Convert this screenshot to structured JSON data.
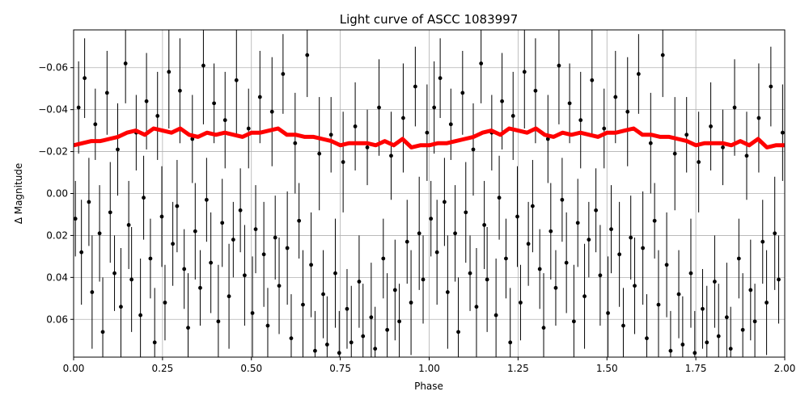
{
  "chart_data": {
    "type": "scatter",
    "title": "Light curve of ASCC 1083997",
    "xlabel": "Phase",
    "ylabel": "Δ Magnitude",
    "xlim": [
      0.0,
      2.0
    ],
    "ylim": [
      0.078,
      -0.078
    ],
    "y_inverted": true,
    "grid": true,
    "x_ticks": [
      "0.00",
      "0.25",
      "0.50",
      "0.75",
      "1.00",
      "1.25",
      "1.50",
      "1.75",
      "2.00"
    ],
    "x_tick_values": [
      0.0,
      0.25,
      0.5,
      0.75,
      1.0,
      1.25,
      1.5,
      1.75,
      2.0
    ],
    "y_ticks": [
      "−0.06",
      "−0.04",
      "−0.02",
      "0.00",
      "0.02",
      "0.04",
      "0.06"
    ],
    "y_tick_values": [
      -0.06,
      -0.04,
      -0.02,
      0.0,
      0.02,
      0.04,
      0.06
    ],
    "colors": {
      "points": "#000000",
      "binned": "#ff0000",
      "grid": "#b0b0b0"
    },
    "series": [
      {
        "kind": "points-with-errorbars",
        "period_repeat": true,
        "phase": [
          0.005,
          0.014,
          0.022,
          0.031,
          0.043,
          0.052,
          0.061,
          0.073,
          0.082,
          0.094,
          0.103,
          0.115,
          0.124,
          0.133,
          0.146,
          0.155,
          0.163,
          0.176,
          0.188,
          0.197,
          0.205,
          0.216,
          0.228,
          0.236,
          0.248,
          0.257,
          0.268,
          0.279,
          0.291,
          0.299,
          0.311,
          0.322,
          0.334,
          0.342,
          0.356,
          0.365,
          0.374,
          0.386,
          0.395,
          0.407,
          0.418,
          0.426,
          0.437,
          0.449,
          0.458,
          0.469,
          0.481,
          0.492,
          0.503,
          0.512,
          0.524,
          0.535,
          0.546,
          0.558,
          0.567,
          0.578,
          0.589,
          0.601,
          0.612,
          0.623,
          0.634,
          0.645,
          0.657,
          0.668,
          0.679,
          0.691,
          0.702,
          0.713,
          0.724,
          0.736,
          0.747,
          0.758,
          0.769,
          0.781,
          0.792,
          0.803,
          0.814,
          0.826,
          0.837,
          0.848,
          0.859,
          0.871,
          0.882,
          0.893,
          0.904,
          0.916,
          0.927,
          0.938,
          0.949,
          0.961,
          0.972,
          0.983,
          0.994
        ],
        "dmag": [
          0.012,
          -0.041,
          0.028,
          -0.055,
          0.004,
          0.047,
          -0.033,
          0.019,
          0.066,
          -0.048,
          0.009,
          0.038,
          -0.021,
          0.054,
          -0.062,
          0.015,
          0.041,
          -0.029,
          0.058,
          0.002,
          -0.044,
          0.031,
          0.071,
          -0.037,
          0.011,
          0.052,
          -0.058,
          0.024,
          0.006,
          -0.049,
          0.036,
          0.064,
          -0.026,
          0.018,
          0.045,
          -0.061,
          0.003,
          0.033,
          -0.043,
          0.061,
          0.014,
          -0.035,
          0.049,
          0.022,
          -0.054,
          0.008,
          0.039,
          -0.031,
          0.057,
          0.017,
          -0.046,
          0.029,
          0.063,
          -0.039,
          0.021,
          0.044,
          -0.057,
          0.026,
          0.069,
          -0.024,
          0.013,
          0.053,
          -0.066,
          0.034,
          0.075,
          -0.019,
          0.048,
          0.072,
          -0.028,
          0.038,
          0.076,
          -0.015,
          0.055,
          0.071,
          -0.032,
          0.042,
          0.068,
          -0.022,
          0.059,
          0.074,
          -0.041,
          0.031,
          0.065,
          -0.018,
          0.046,
          0.061,
          -0.036,
          0.023,
          0.052,
          -0.051,
          0.019,
          0.041,
          -0.029
        ],
        "err": [
          0.018,
          0.022,
          0.025,
          0.019,
          0.021,
          0.027,
          0.017,
          0.023,
          0.026,
          0.02,
          0.024,
          0.018,
          0.022,
          0.028,
          0.019,
          0.021,
          0.025,
          0.018,
          0.027,
          0.02,
          0.023,
          0.019,
          0.026,
          0.021,
          0.024,
          0.018,
          0.027,
          0.02,
          0.022,
          0.025,
          0.019,
          0.026,
          0.021,
          0.023,
          0.018,
          0.028,
          0.02,
          0.024,
          0.019,
          0.027,
          0.021,
          0.023,
          0.025,
          0.018,
          0.026,
          0.02,
          0.024,
          0.019,
          0.027,
          0.021,
          0.022,
          0.025,
          0.018,
          0.026,
          0.02,
          0.023,
          0.019,
          0.027,
          0.021,
          0.024,
          0.018,
          0.026,
          0.02,
          0.025,
          0.019,
          0.027,
          0.021,
          0.023,
          0.018,
          0.026,
          0.02,
          0.024,
          0.019,
          0.027,
          0.021,
          0.022,
          0.025,
          0.018,
          0.026,
          0.02,
          0.023,
          0.019,
          0.027,
          0.021,
          0.024,
          0.018,
          0.026,
          0.02,
          0.025,
          0.019,
          0.027,
          0.021,
          0.023
        ]
      },
      {
        "kind": "binned-line",
        "x": [
          0.0,
          0.025,
          0.05,
          0.075,
          0.1,
          0.125,
          0.15,
          0.175,
          0.2,
          0.225,
          0.25,
          0.275,
          0.3,
          0.325,
          0.35,
          0.375,
          0.4,
          0.425,
          0.45,
          0.475,
          0.5,
          0.525,
          0.55,
          0.575,
          0.6,
          0.625,
          0.65,
          0.675,
          0.7,
          0.725,
          0.75,
          0.775,
          0.8,
          0.825,
          0.85,
          0.875,
          0.9,
          0.925,
          0.95,
          0.975,
          1.0,
          1.025,
          1.05,
          1.075,
          1.1,
          1.125,
          1.15,
          1.175,
          1.2,
          1.225,
          1.25,
          1.275,
          1.3,
          1.325,
          1.35,
          1.375,
          1.4,
          1.425,
          1.45,
          1.475,
          1.5,
          1.525,
          1.55,
          1.575,
          1.6,
          1.625,
          1.65,
          1.675,
          1.7,
          1.725,
          1.75,
          1.775,
          1.8,
          1.825,
          1.85,
          1.875,
          1.9,
          1.925,
          1.95,
          1.975,
          2.0
        ],
        "y": [
          -0.023,
          -0.024,
          -0.025,
          -0.025,
          -0.026,
          -0.027,
          -0.029,
          -0.03,
          -0.028,
          -0.031,
          -0.03,
          -0.029,
          -0.031,
          -0.028,
          -0.027,
          -0.029,
          -0.028,
          -0.029,
          -0.028,
          -0.027,
          -0.029,
          -0.029,
          -0.03,
          -0.031,
          -0.028,
          -0.028,
          -0.027,
          -0.027,
          -0.026,
          -0.025,
          -0.023,
          -0.024,
          -0.024,
          -0.024,
          -0.023,
          -0.025,
          -0.023,
          -0.026,
          -0.022,
          -0.023,
          -0.023,
          -0.024,
          -0.024,
          -0.025,
          -0.026,
          -0.027,
          -0.029,
          -0.03,
          -0.028,
          -0.031,
          -0.03,
          -0.029,
          -0.031,
          -0.028,
          -0.027,
          -0.029,
          -0.028,
          -0.029,
          -0.028,
          -0.027,
          -0.029,
          -0.029,
          -0.03,
          -0.031,
          -0.028,
          -0.028,
          -0.027,
          -0.027,
          -0.026,
          -0.025,
          -0.023,
          -0.024,
          -0.024,
          -0.024,
          -0.023,
          -0.025,
          -0.023,
          -0.026,
          -0.022,
          -0.023,
          -0.023
        ]
      }
    ]
  }
}
